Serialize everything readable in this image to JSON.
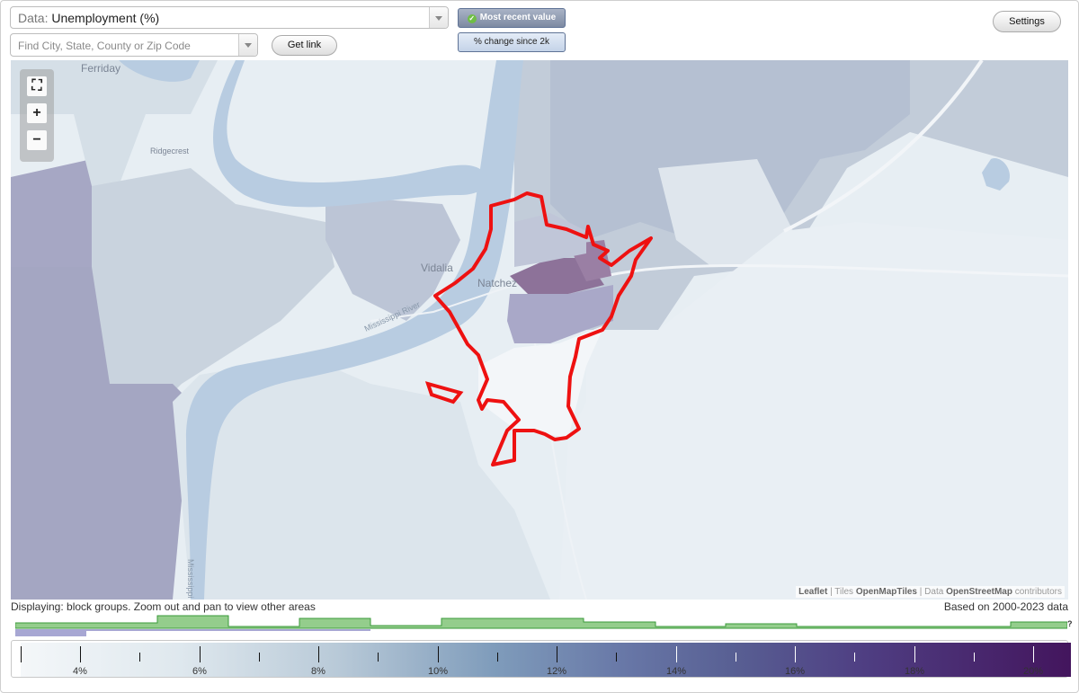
{
  "toolbar": {
    "data_prefix": "Data:",
    "data_value": "Unemployment (%)",
    "search_placeholder": "Find City, State, County or Zip Code",
    "get_link_label": "Get link",
    "settings_label": "Settings",
    "toggle_recent_label": "Most recent value",
    "toggle_change_label": "% change since 2k"
  },
  "map": {
    "places": [
      "Ferriday",
      "Ridgecrest",
      "Vidalia",
      "Natchez"
    ],
    "road_labels": [
      "Mississippi River",
      "Mississippi"
    ],
    "attribution": {
      "leaflet": "Leaflet",
      "sep1": " | Tiles ",
      "tiles": "OpenMapTiles",
      "sep2": " | Data ",
      "data": "OpenStreetMap",
      "suffix": " contributors"
    },
    "zoom_controls": {
      "fullscreen_icon": "fullscreen-icon",
      "plus": "+",
      "minus": "−"
    },
    "boundary_color": "#ee1111"
  },
  "footer": {
    "status": "Displaying: block groups. Zoom out and pan to view other areas",
    "basis": "Based on 2000-2023 data",
    "help": "?"
  },
  "legend": {
    "labels": [
      "4%",
      "6%",
      "8%",
      "10%",
      "12%",
      "14%",
      "16%",
      "18%",
      "20%"
    ],
    "min_color": "#f4f7f9",
    "max_color": "#43155d"
  }
}
